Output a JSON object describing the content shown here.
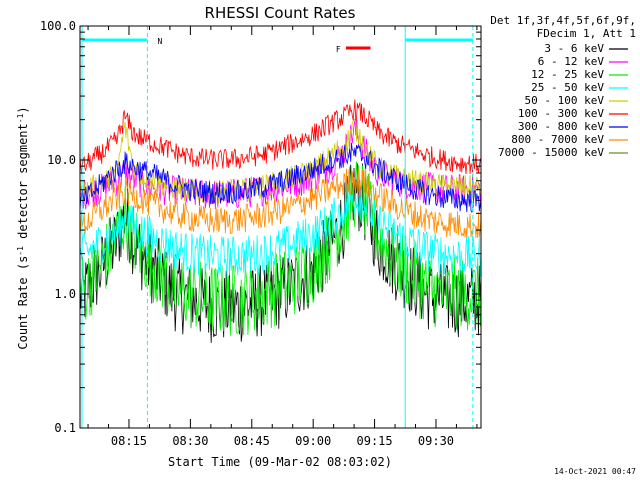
{
  "chart_data": {
    "type": "line",
    "title": "RHESSI Count Rates",
    "xlabel": "Start Time (09-Mar-02 08:03:02)",
    "ylabel_parts": [
      "Count Rate (s",
      "-1",
      " detector segment",
      "-1",
      ")"
    ],
    "y_scale": "log",
    "ylim": [
      0.1,
      100.0
    ],
    "y_ticks": [
      {
        "value": 0.1,
        "label": "0.1"
      },
      {
        "value": 1.0,
        "label": "1.0"
      },
      {
        "value": 10.0,
        "label": "10.0"
      },
      {
        "value": 100.0,
        "label": "100.0"
      }
    ],
    "xlim_minutes": [
      "08:03:02",
      "09:41:00"
    ],
    "x_ticks": [
      {
        "time": "08:15",
        "label": "08:15"
      },
      {
        "time": "08:30",
        "label": "08:30"
      },
      {
        "time": "08:45",
        "label": "08:45"
      },
      {
        "time": "09:00",
        "label": "09:00"
      },
      {
        "time": "09:15",
        "label": "09:15"
      },
      {
        "time": "09:30",
        "label": "09:30"
      }
    ],
    "legend_header": [
      "Det 1f,3f,4f,5f,6f,9f,",
      "FDecim 1, Att 1"
    ],
    "legend_placement": "right",
    "series": [
      {
        "name": "3 - 6 keV",
        "color": "#000000",
        "x": [
          "08:04",
          "08:08",
          "08:12",
          "08:14",
          "08:16",
          "08:18",
          "08:22",
          "08:26",
          "08:30",
          "08:36",
          "08:42",
          "08:48",
          "08:54",
          "09:00",
          "09:04",
          "09:08",
          "09:10",
          "09:12",
          "09:14",
          "09:16",
          "09:20",
          "09:24",
          "09:28",
          "09:32",
          "09:36",
          "09:40"
        ],
        "y": [
          1.0,
          1.5,
          2.5,
          4.0,
          2.6,
          2.0,
          1.4,
          1.0,
          0.9,
          0.8,
          0.8,
          0.9,
          1.1,
          1.5,
          2.2,
          3.8,
          6.0,
          5.0,
          3.5,
          2.4,
          1.7,
          1.3,
          1.0,
          0.9,
          0.9,
          0.9
        ]
      },
      {
        "name": "6 - 12 keV",
        "color": "#ff00ff",
        "x": [
          "08:04",
          "08:08",
          "08:12",
          "08:14",
          "08:16",
          "08:18",
          "08:22",
          "08:26",
          "08:30",
          "08:36",
          "08:42",
          "08:48",
          "08:54",
          "09:00",
          "09:04",
          "09:08",
          "09:10",
          "09:12",
          "09:14",
          "09:16",
          "09:20",
          "09:24",
          "09:28",
          "09:32",
          "09:36",
          "09:40"
        ],
        "y": [
          5.6,
          6.0,
          7.0,
          8.0,
          7.3,
          6.8,
          6.2,
          5.8,
          5.6,
          5.5,
          5.6,
          6.0,
          6.6,
          7.5,
          9.0,
          12.0,
          17.0,
          13.0,
          9.5,
          8.0,
          7.0,
          6.5,
          6.2,
          6.0,
          6.0,
          6.0
        ]
      },
      {
        "name": "12 - 25 keV",
        "color": "#00ee00",
        "x": [
          "08:04",
          "08:08",
          "08:12",
          "08:14",
          "08:16",
          "08:18",
          "08:22",
          "08:26",
          "08:30",
          "08:36",
          "08:42",
          "08:48",
          "08:54",
          "09:00",
          "09:04",
          "09:08",
          "09:10",
          "09:12",
          "09:14",
          "09:16",
          "09:20",
          "09:24",
          "09:28",
          "09:32",
          "09:36",
          "09:40"
        ],
        "y": [
          1.1,
          1.6,
          2.6,
          3.8,
          2.7,
          2.1,
          1.5,
          1.1,
          1.0,
          0.9,
          0.9,
          1.0,
          1.2,
          1.6,
          2.3,
          4.0,
          5.8,
          5.2,
          3.8,
          2.6,
          1.8,
          1.4,
          1.1,
          1.0,
          1.0,
          1.0
        ]
      },
      {
        "name": "25 - 50 keV",
        "color": "#00ffff",
        "x": [
          "08:04",
          "08:08",
          "08:12",
          "08:14",
          "08:16",
          "08:18",
          "08:22",
          "08:26",
          "08:30",
          "08:36",
          "08:42",
          "08:48",
          "08:54",
          "09:00",
          "09:04",
          "09:08",
          "09:10",
          "09:12",
          "09:14",
          "09:16",
          "09:20",
          "09:24",
          "09:28",
          "09:32",
          "09:36",
          "09:40"
        ],
        "y": [
          2.0,
          2.4,
          3.0,
          3.6,
          3.2,
          2.9,
          2.5,
          2.2,
          2.0,
          1.9,
          1.9,
          2.0,
          2.3,
          2.8,
          3.4,
          4.5,
          5.5,
          5.0,
          4.2,
          3.4,
          2.8,
          2.4,
          2.1,
          2.0,
          1.9,
          1.9
        ]
      },
      {
        "name": "50 - 100 keV",
        "color": "#cccc00",
        "x": [
          "08:04",
          "08:08",
          "08:12",
          "08:14",
          "08:16",
          "08:18",
          "08:22",
          "08:26",
          "08:30",
          "08:36",
          "08:42",
          "08:48",
          "08:54",
          "09:00",
          "09:04",
          "09:08",
          "09:10",
          "09:12",
          "09:14",
          "09:16",
          "09:20",
          "09:24",
          "09:28",
          "09:32",
          "09:36",
          "09:40"
        ],
        "y": [
          6.0,
          6.6,
          8.0,
          18.0,
          9.0,
          7.6,
          6.8,
          6.2,
          5.9,
          5.8,
          5.9,
          6.4,
          7.2,
          8.5,
          10.5,
          13.5,
          18.0,
          14.0,
          10.5,
          8.8,
          7.6,
          7.0,
          6.6,
          6.4,
          6.3,
          6.3
        ]
      },
      {
        "name": "100 - 300 keV",
        "color": "#ff0000",
        "x": [
          "08:04",
          "08:08",
          "08:12",
          "08:14",
          "08:16",
          "08:18",
          "08:22",
          "08:26",
          "08:30",
          "08:36",
          "08:42",
          "08:48",
          "08:54",
          "09:00",
          "09:04",
          "09:08",
          "09:10",
          "09:12",
          "09:14",
          "09:16",
          "09:20",
          "09:24",
          "09:28",
          "09:32",
          "09:36",
          "09:40"
        ],
        "y": [
          9.0,
          11.0,
          14.0,
          21.0,
          16.0,
          14.5,
          13.0,
          11.5,
          10.5,
          10.0,
          10.2,
          11.0,
          13.0,
          15.5,
          18.5,
          21.5,
          24.0,
          22.0,
          19.0,
          16.0,
          13.5,
          12.0,
          10.8,
          10.0,
          9.5,
          9.3
        ]
      },
      {
        "name": "300 - 800 keV",
        "color": "#0000ff",
        "x": [
          "08:04",
          "08:08",
          "08:12",
          "08:14",
          "08:16",
          "08:18",
          "08:22",
          "08:26",
          "08:30",
          "08:36",
          "08:42",
          "08:48",
          "08:54",
          "09:00",
          "09:04",
          "09:08",
          "09:10",
          "09:12",
          "09:14",
          "09:16",
          "09:20",
          "09:24",
          "09:28",
          "09:32",
          "09:36",
          "09:40"
        ],
        "y": [
          5.0,
          6.5,
          8.5,
          9.5,
          9.0,
          8.4,
          7.5,
          6.6,
          6.0,
          5.7,
          5.8,
          6.3,
          7.2,
          8.5,
          9.8,
          10.8,
          11.2,
          10.8,
          9.8,
          8.6,
          7.2,
          6.2,
          5.6,
          5.2,
          5.0,
          4.9
        ]
      },
      {
        "name": "800 - 7000 keV",
        "color": "#ff8c00",
        "x": [
          "08:04",
          "08:08",
          "08:12",
          "08:14",
          "08:16",
          "08:18",
          "08:22",
          "08:26",
          "08:30",
          "08:36",
          "08:42",
          "08:48",
          "08:54",
          "09:00",
          "09:04",
          "09:08",
          "09:10",
          "09:12",
          "09:14",
          "09:16",
          "09:20",
          "09:24",
          "09:28",
          "09:32",
          "09:36",
          "09:40"
        ],
        "y": [
          3.3,
          4.2,
          5.2,
          5.8,
          5.5,
          5.1,
          4.5,
          4.0,
          3.7,
          3.5,
          3.6,
          3.9,
          4.4,
          5.2,
          6.0,
          6.8,
          7.2,
          6.9,
          6.2,
          5.4,
          4.6,
          4.0,
          3.6,
          3.4,
          3.3,
          3.2
        ]
      },
      {
        "name": "7000 - 15000 keV",
        "color": "#6b8e23",
        "x": [],
        "y": []
      }
    ],
    "background_interval_markers": [
      {
        "start": "08:03:02",
        "end": "08:20:00",
        "label": "N",
        "color": "#00ffff"
      },
      {
        "start": "09:22:00",
        "end": "09:39:30",
        "label": "",
        "color": "#00ffff"
      }
    ],
    "flare_marker": {
      "label": "F",
      "start": "09:08",
      "end": "09:14",
      "color": "#ff0000"
    },
    "grid": false
  },
  "footer": {
    "timestamp": "14-Oct-2021 00:47"
  }
}
